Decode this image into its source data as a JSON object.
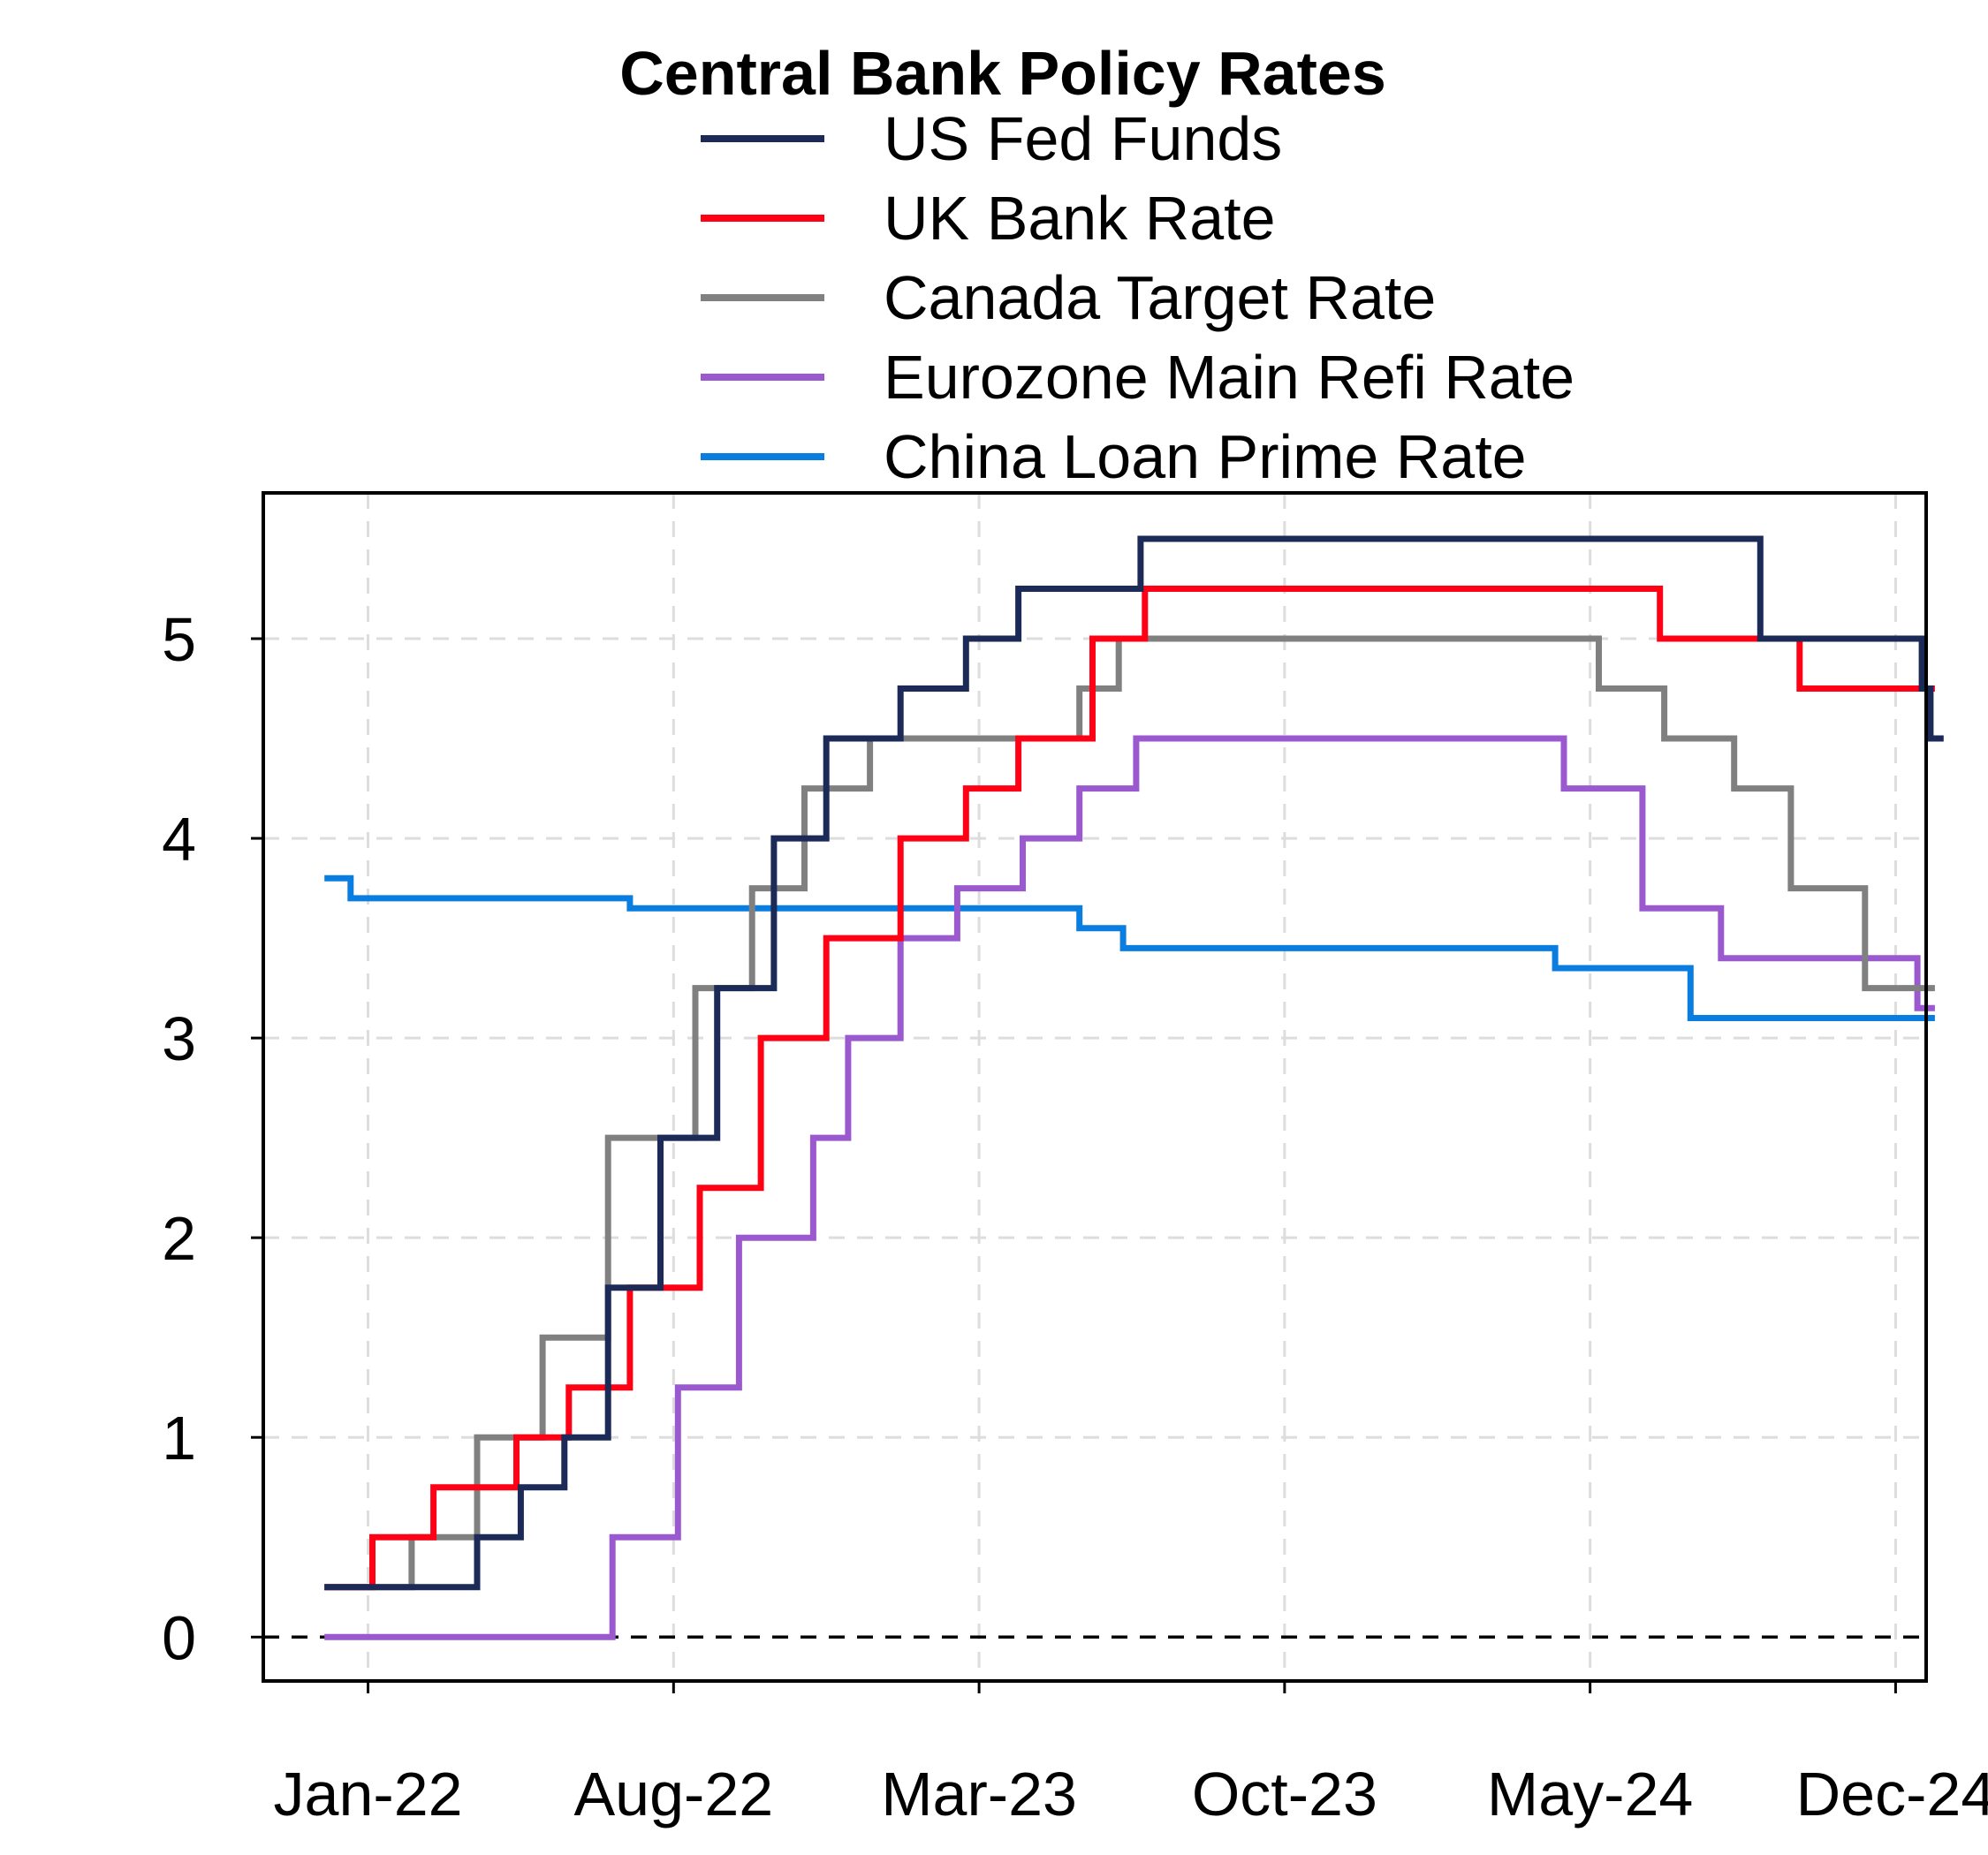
{
  "chart_data": {
    "type": "line",
    "title": "Central Bank Policy Rates",
    "xlabel": "",
    "ylabel": "",
    "x_ticks": [
      "Jan-22",
      "Aug-22",
      "Mar-23",
      "Oct-23",
      "May-24",
      "Dec-24"
    ],
    "y_ticks": [
      "0",
      "1",
      "2",
      "3",
      "4",
      "5"
    ],
    "ylim": [
      -0.22,
      5.73
    ],
    "xlim": [
      -2.4,
      35.7
    ],
    "x_unit": "months since Jan-22",
    "grid": true,
    "zero_line": true,
    "legend_position": "top",
    "series": [
      {
        "name": "US Fed Funds",
        "color": "#1b2a56",
        "step": [
          [
            -1.0,
            0.25
          ],
          [
            1.5,
            0.25
          ],
          [
            2.5,
            0.5
          ],
          [
            3.5,
            0.75
          ],
          [
            4.5,
            1.0
          ],
          [
            5.5,
            1.75
          ],
          [
            6.7,
            2.5
          ],
          [
            8.0,
            3.25
          ],
          [
            9.3,
            4.0
          ],
          [
            10.5,
            4.5
          ],
          [
            12.2,
            4.75
          ],
          [
            13.7,
            5.0
          ],
          [
            14.9,
            5.25
          ],
          [
            17.7,
            5.5
          ],
          [
            31.9,
            5.0
          ],
          [
            35.6,
            4.75
          ],
          [
            35.8,
            4.5
          ],
          [
            36.1,
            4.5
          ]
        ]
      },
      {
        "name": "UK Bank Rate",
        "color": "#ff0015",
        "step": [
          [
            -1.0,
            0.25
          ],
          [
            0.1,
            0.5
          ],
          [
            1.5,
            0.75
          ],
          [
            3.4,
            1.0
          ],
          [
            4.6,
            1.25
          ],
          [
            6.0,
            1.75
          ],
          [
            7.6,
            2.25
          ],
          [
            9.0,
            3.0
          ],
          [
            10.5,
            3.5
          ],
          [
            12.2,
            4.0
          ],
          [
            13.7,
            4.25
          ],
          [
            14.9,
            4.5
          ],
          [
            16.6,
            5.0
          ],
          [
            17.8,
            5.25
          ],
          [
            29.6,
            5.0
          ],
          [
            32.8,
            4.75
          ],
          [
            35.9,
            4.75
          ]
        ]
      },
      {
        "name": "Canada Target Rate",
        "color": "#808080",
        "step": [
          [
            -1.0,
            0.25
          ],
          [
            1.0,
            0.5
          ],
          [
            2.5,
            1.0
          ],
          [
            4.0,
            1.5
          ],
          [
            5.5,
            2.5
          ],
          [
            7.5,
            3.25
          ],
          [
            8.8,
            3.75
          ],
          [
            10.0,
            4.25
          ],
          [
            11.5,
            4.5
          ],
          [
            16.3,
            4.75
          ],
          [
            17.2,
            5.0
          ],
          [
            28.2,
            4.75
          ],
          [
            29.7,
            4.5
          ],
          [
            31.3,
            4.25
          ],
          [
            32.6,
            3.75
          ],
          [
            34.3,
            3.25
          ],
          [
            35.9,
            3.25
          ]
        ]
      },
      {
        "name": "Eurozone Main Refi Rate",
        "color": "#9b59d0",
        "step": [
          [
            -1.0,
            0.0
          ],
          [
            5.6,
            0.5
          ],
          [
            7.1,
            1.25
          ],
          [
            8.5,
            2.0
          ],
          [
            10.2,
            2.5
          ],
          [
            11.0,
            3.0
          ],
          [
            12.2,
            3.5
          ],
          [
            13.5,
            3.75
          ],
          [
            15.0,
            4.0
          ],
          [
            16.3,
            4.25
          ],
          [
            17.6,
            4.5
          ],
          [
            27.4,
            4.25
          ],
          [
            29.2,
            3.65
          ],
          [
            31.0,
            3.4
          ],
          [
            35.5,
            3.15
          ],
          [
            35.9,
            3.15
          ]
        ]
      },
      {
        "name": "China Loan Prime Rate",
        "color": "#0a7de0",
        "step": [
          [
            -1.0,
            3.8
          ],
          [
            -0.4,
            3.7
          ],
          [
            6.0,
            3.65
          ],
          [
            16.3,
            3.55
          ],
          [
            17.3,
            3.45
          ],
          [
            27.2,
            3.35
          ],
          [
            30.3,
            3.1
          ],
          [
            35.9,
            3.1
          ]
        ]
      }
    ]
  }
}
